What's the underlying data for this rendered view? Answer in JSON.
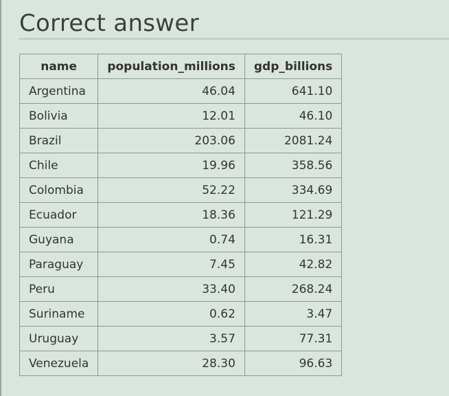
{
  "title": "Correct answer",
  "table": {
    "columns": [
      "name",
      "population_millions",
      "gdp_billions"
    ],
    "rows": [
      [
        "Argentina",
        "46.04",
        "641.10"
      ],
      [
        "Bolivia",
        "12.01",
        "46.10"
      ],
      [
        "Brazil",
        "203.06",
        "2081.24"
      ],
      [
        "Chile",
        "19.96",
        "358.56"
      ],
      [
        "Colombia",
        "52.22",
        "334.69"
      ],
      [
        "Ecuador",
        "18.36",
        "121.29"
      ],
      [
        "Guyana",
        "0.74",
        "16.31"
      ],
      [
        "Paraguay",
        "7.45",
        "42.82"
      ],
      [
        "Peru",
        "33.40",
        "268.24"
      ],
      [
        "Suriname",
        "0.62",
        "3.47"
      ],
      [
        "Uruguay",
        "3.57",
        "77.31"
      ],
      [
        "Venezuela",
        "28.30",
        "96.63"
      ]
    ]
  }
}
